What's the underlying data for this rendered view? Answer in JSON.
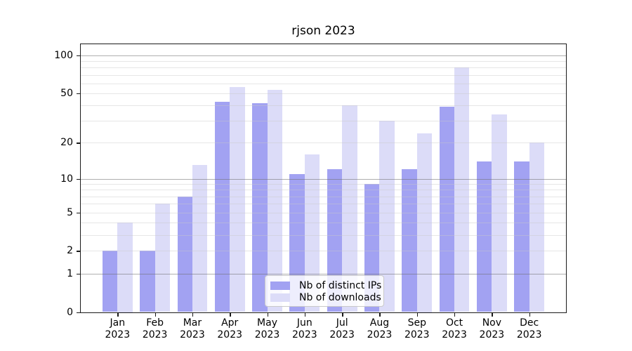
{
  "chart_data": {
    "type": "bar",
    "title": "rjson 2023",
    "categories": [
      "Jan 2023",
      "Feb 2023",
      "Mar 2023",
      "Apr 2023",
      "May 2023",
      "Jun 2023",
      "Jul 2023",
      "Aug 2023",
      "Sep 2023",
      "Oct 2023",
      "Nov 2023",
      "Dec 2023"
    ],
    "series": [
      {
        "name": "Nb of distinct IPs",
        "color": "#a2a2f2",
        "values": [
          2,
          2,
          7,
          43,
          42,
          11,
          12,
          9,
          12,
          39,
          14,
          14
        ]
      },
      {
        "name": "Nb of downloads",
        "color": "#dcdcf8",
        "values": [
          4,
          6,
          13,
          56,
          53,
          16,
          40,
          30,
          24,
          80,
          34,
          20
        ]
      }
    ],
    "xlabel": "",
    "ylabel": "",
    "y_axis": {
      "scale": "log1p",
      "ylim": [
        0,
        124
      ],
      "tick_values": [
        0,
        1,
        2,
        5,
        10,
        20,
        50,
        100
      ],
      "tick_labels": [
        "0",
        "1",
        "2",
        "5",
        "10",
        "20",
        "50",
        "100"
      ],
      "major_gridlines": [
        1,
        10,
        100
      ],
      "minor_gridlines": [
        2,
        3,
        4,
        5,
        6,
        7,
        8,
        9,
        20,
        30,
        40,
        50,
        60,
        70,
        80,
        90
      ]
    },
    "grid": true,
    "legend": {
      "position": "lower center",
      "entries": [
        "Nb of distinct IPs",
        "Nb of downloads"
      ]
    }
  }
}
